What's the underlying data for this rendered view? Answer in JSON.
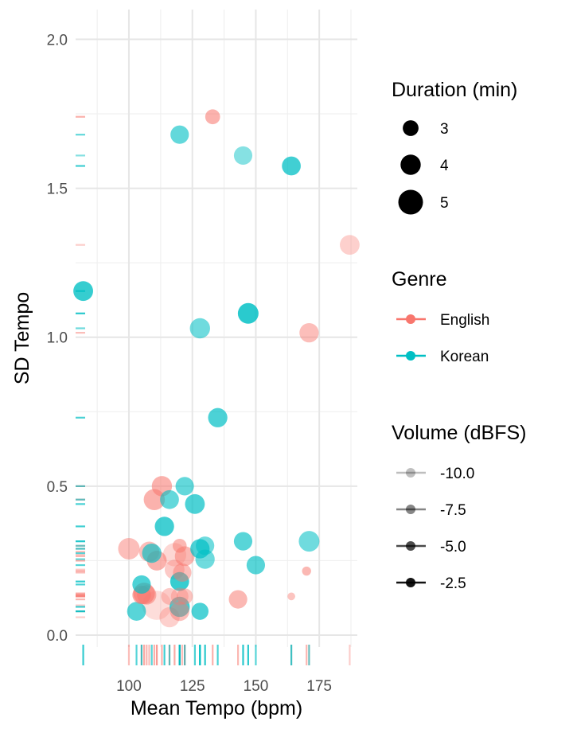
{
  "chart_data": {
    "type": "scatter",
    "xlabel": "Mean Tempo (bpm)",
    "ylabel": "SD Tempo",
    "xlim": [
      79,
      190
    ],
    "ylim": [
      -0.04,
      2.1
    ],
    "x_ticks": [
      100,
      125,
      150,
      175
    ],
    "x_tick_labels": [
      "100",
      "125",
      "150",
      "175"
    ],
    "y_ticks": [
      0.0,
      0.5,
      1.0,
      1.5,
      2.0
    ],
    "y_tick_labels": [
      "0.0",
      "0.5",
      "1.0",
      "1.5",
      "2.0"
    ],
    "grid": true,
    "rug": true,
    "legend_position": "right",
    "colors": {
      "English": "#F8766D",
      "Korean": "#00BFC4"
    },
    "legends": {
      "size": {
        "title": "Duration (min)",
        "values": [
          3,
          4,
          5
        ],
        "labels": [
          "3",
          "4",
          "5"
        ]
      },
      "color": {
        "title": "Genre",
        "labels": [
          "English",
          "Korean"
        ]
      },
      "alpha": {
        "title": "Volume (dBFS)",
        "values": [
          -10.0,
          -7.5,
          -5.0,
          -2.5
        ],
        "labels": [
          "-10.0",
          "-7.5",
          "-5.0",
          "-2.5"
        ]
      }
    },
    "series": [
      {
        "name": "English",
        "points": [
          {
            "x": 133,
            "y": 1.74,
            "duration": 2.8,
            "volume": -6.5
          },
          {
            "x": 187,
            "y": 1.31,
            "duration": 3.9,
            "volume": -9.0
          },
          {
            "x": 171,
            "y": 1.015,
            "duration": 3.8,
            "volume": -7.5
          },
          {
            "x": 170,
            "y": 0.215,
            "duration": 1.5,
            "volume": -7.0
          },
          {
            "x": 113,
            "y": 0.5,
            "duration": 4.0,
            "volume": -6.5
          },
          {
            "x": 110,
            "y": 0.455,
            "duration": 4.2,
            "volume": -6.5
          },
          {
            "x": 100,
            "y": 0.29,
            "duration": 4.3,
            "volume": -7.5
          },
          {
            "x": 108,
            "y": 0.28,
            "duration": 4.0,
            "volume": -7.5
          },
          {
            "x": 111,
            "y": 0.25,
            "duration": 3.9,
            "volume": -6.5
          },
          {
            "x": 118,
            "y": 0.27,
            "duration": 4.7,
            "volume": -9.5
          },
          {
            "x": 120,
            "y": 0.3,
            "duration": 2.6,
            "volume": -7.0
          },
          {
            "x": 122,
            "y": 0.265,
            "duration": 3.9,
            "volume": -7.0
          },
          {
            "x": 118,
            "y": 0.22,
            "duration": 3.9,
            "volume": -8.5
          },
          {
            "x": 121,
            "y": 0.21,
            "duration": 3.6,
            "volume": -7.5
          },
          {
            "x": 105,
            "y": 0.135,
            "duration": 3.6,
            "volume": -6.0
          },
          {
            "x": 106,
            "y": 0.14,
            "duration": 4.3,
            "volume": -6.0
          },
          {
            "x": 107,
            "y": 0.135,
            "duration": 3.8,
            "volume": -7.0
          },
          {
            "x": 111,
            "y": 0.1,
            "duration": 6.0,
            "volume": -10.0
          },
          {
            "x": 116,
            "y": 0.13,
            "duration": 3.2,
            "volume": -8.5
          },
          {
            "x": 120,
            "y": 0.13,
            "duration": 3.4,
            "volume": -9.0
          },
          {
            "x": 122,
            "y": 0.13,
            "duration": 3.1,
            "volume": -8.0
          },
          {
            "x": 116,
            "y": 0.06,
            "duration": 4.0,
            "volume": -9.0
          },
          {
            "x": 120,
            "y": 0.08,
            "duration": 3.8,
            "volume": -7.5
          },
          {
            "x": 143,
            "y": 0.12,
            "duration": 3.6,
            "volume": -7.0
          },
          {
            "x": 164,
            "y": 0.13,
            "duration": 1.2,
            "volume": -8.0
          }
        ]
      },
      {
        "name": "Korean",
        "points": [
          {
            "x": 120,
            "y": 1.68,
            "duration": 3.6,
            "volume": -6.0
          },
          {
            "x": 145,
            "y": 1.61,
            "duration": 3.6,
            "volume": -7.5
          },
          {
            "x": 164,
            "y": 1.575,
            "duration": 3.7,
            "volume": -4.5
          },
          {
            "x": 82,
            "y": 1.155,
            "duration": 3.9,
            "volume": -4.0
          },
          {
            "x": 147,
            "y": 1.08,
            "duration": 4.1,
            "volume": -3.5
          },
          {
            "x": 128,
            "y": 1.03,
            "duration": 4.0,
            "volume": -6.5
          },
          {
            "x": 135,
            "y": 0.73,
            "duration": 3.8,
            "volume": -5.0
          },
          {
            "x": 122,
            "y": 0.5,
            "duration": 3.6,
            "volume": -6.0
          },
          {
            "x": 116,
            "y": 0.455,
            "duration": 3.7,
            "volume": -6.0
          },
          {
            "x": 126,
            "y": 0.44,
            "duration": 3.9,
            "volume": -5.0
          },
          {
            "x": 114,
            "y": 0.365,
            "duration": 3.8,
            "volume": -4.5
          },
          {
            "x": 109,
            "y": 0.275,
            "duration": 3.8,
            "volume": -5.5
          },
          {
            "x": 128,
            "y": 0.29,
            "duration": 3.8,
            "volume": -5.0
          },
          {
            "x": 130,
            "y": 0.3,
            "duration": 3.6,
            "volume": -6.5
          },
          {
            "x": 130,
            "y": 0.255,
            "duration": 3.8,
            "volume": -6.5
          },
          {
            "x": 145,
            "y": 0.315,
            "duration": 3.6,
            "volume": -5.5
          },
          {
            "x": 150,
            "y": 0.235,
            "duration": 3.6,
            "volume": -5.5
          },
          {
            "x": 171,
            "y": 0.315,
            "duration": 4.1,
            "volume": -6.5
          },
          {
            "x": 105,
            "y": 0.17,
            "duration": 3.6,
            "volume": -5.0
          },
          {
            "x": 120,
            "y": 0.18,
            "duration": 3.7,
            "volume": -4.0
          },
          {
            "x": 120,
            "y": 0.095,
            "duration": 4.0,
            "volume": -4.5
          },
          {
            "x": 103,
            "y": 0.08,
            "duration": 3.7,
            "volume": -5.5
          },
          {
            "x": 128,
            "y": 0.08,
            "duration": 3.3,
            "volume": -5.0
          }
        ]
      }
    ]
  }
}
